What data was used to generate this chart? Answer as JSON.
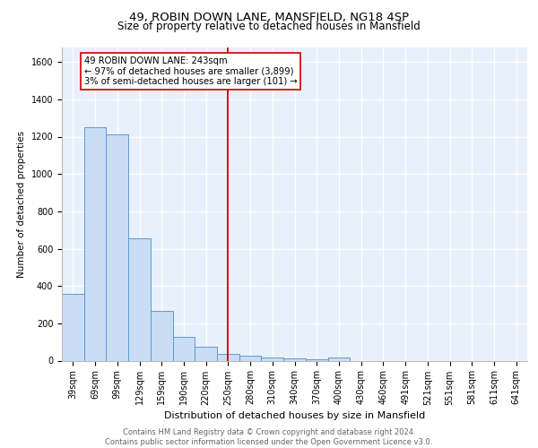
{
  "title1": "49, ROBIN DOWN LANE, MANSFIELD, NG18 4SP",
  "title2": "Size of property relative to detached houses in Mansfield",
  "xlabel": "Distribution of detached houses by size in Mansfield",
  "ylabel": "Number of detached properties",
  "footnote": "Contains HM Land Registry data © Crown copyright and database right 2024.\nContains public sector information licensed under the Open Government Licence v3.0.",
  "bar_labels": [
    "39sqm",
    "69sqm",
    "99sqm",
    "129sqm",
    "159sqm",
    "190sqm",
    "220sqm",
    "250sqm",
    "280sqm",
    "310sqm",
    "340sqm",
    "370sqm",
    "400sqm",
    "430sqm",
    "460sqm",
    "491sqm",
    "521sqm",
    "551sqm",
    "581sqm",
    "611sqm",
    "641sqm"
  ],
  "bar_values": [
    360,
    1250,
    1210,
    655,
    265,
    125,
    75,
    35,
    25,
    15,
    12,
    8,
    15,
    0,
    0,
    0,
    0,
    0,
    0,
    0,
    0
  ],
  "bar_color": "#c9ddf5",
  "bar_edge_color": "#5b9bd5",
  "vline_x": 7.0,
  "vline_color": "#cc0000",
  "annotation_text": "49 ROBIN DOWN LANE: 243sqm\n← 97% of detached houses are smaller (3,899)\n3% of semi-detached houses are larger (101) →",
  "annotation_box_color": "#ffffff",
  "annotation_box_edge": "#cc0000",
  "ylim": [
    0,
    1680
  ],
  "yticks": [
    0,
    200,
    400,
    600,
    800,
    1000,
    1200,
    1400,
    1600
  ],
  "bg_color": "#e8f0fb",
  "title1_fontsize": 9.5,
  "title2_fontsize": 8.5,
  "ylabel_fontsize": 7.5,
  "xlabel_fontsize": 8.0,
  "tick_fontsize": 7.0,
  "footnote_fontsize": 6.0
}
